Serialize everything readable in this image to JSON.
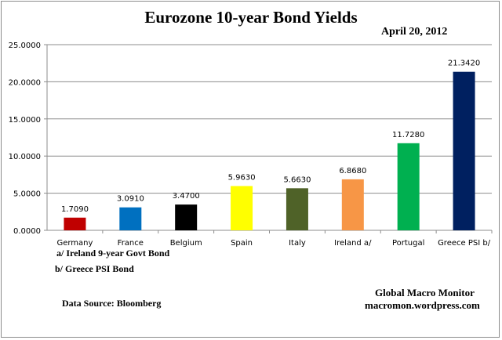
{
  "chart_data": {
    "type": "bar",
    "title": "Eurozone 10-year Bond Yields",
    "subtitle": "April 20, 2012",
    "categories": [
      "Germany",
      "France",
      "Belgium",
      "Spain",
      "Italy",
      "Ireland  a/",
      "Portugal",
      "Greece PSI b/"
    ],
    "values": [
      1.709,
      3.091,
      3.47,
      5.963,
      5.663,
      6.868,
      11.728,
      21.342
    ],
    "value_labels": [
      "1.7090",
      "3.0910",
      "3.4700",
      "5.9630",
      "5.6630",
      "6.8680",
      "11.7280",
      "21.3420"
    ],
    "colors": [
      "#c00000",
      "#0070c0",
      "#000000",
      "#ffff00",
      "#4f6228",
      "#f79646",
      "#00b050",
      "#002060"
    ],
    "ylim": [
      0,
      25
    ],
    "yticks": [
      0,
      5,
      10,
      15,
      20,
      25
    ],
    "ytick_labels": [
      "0.0000",
      "5.0000",
      "10.0000",
      "15.0000",
      "20.0000",
      "25.0000"
    ],
    "grid": true,
    "xlabel": "",
    "ylabel": ""
  },
  "notes": {
    "note_a": "a/ Ireland 9-year Govt Bond",
    "note_b": "b/  Greece  PSI Bond",
    "source": "Data Source:  Bloomberg",
    "brand": "Global Macro Monitor",
    "url": "macromon.wordpress.com"
  }
}
